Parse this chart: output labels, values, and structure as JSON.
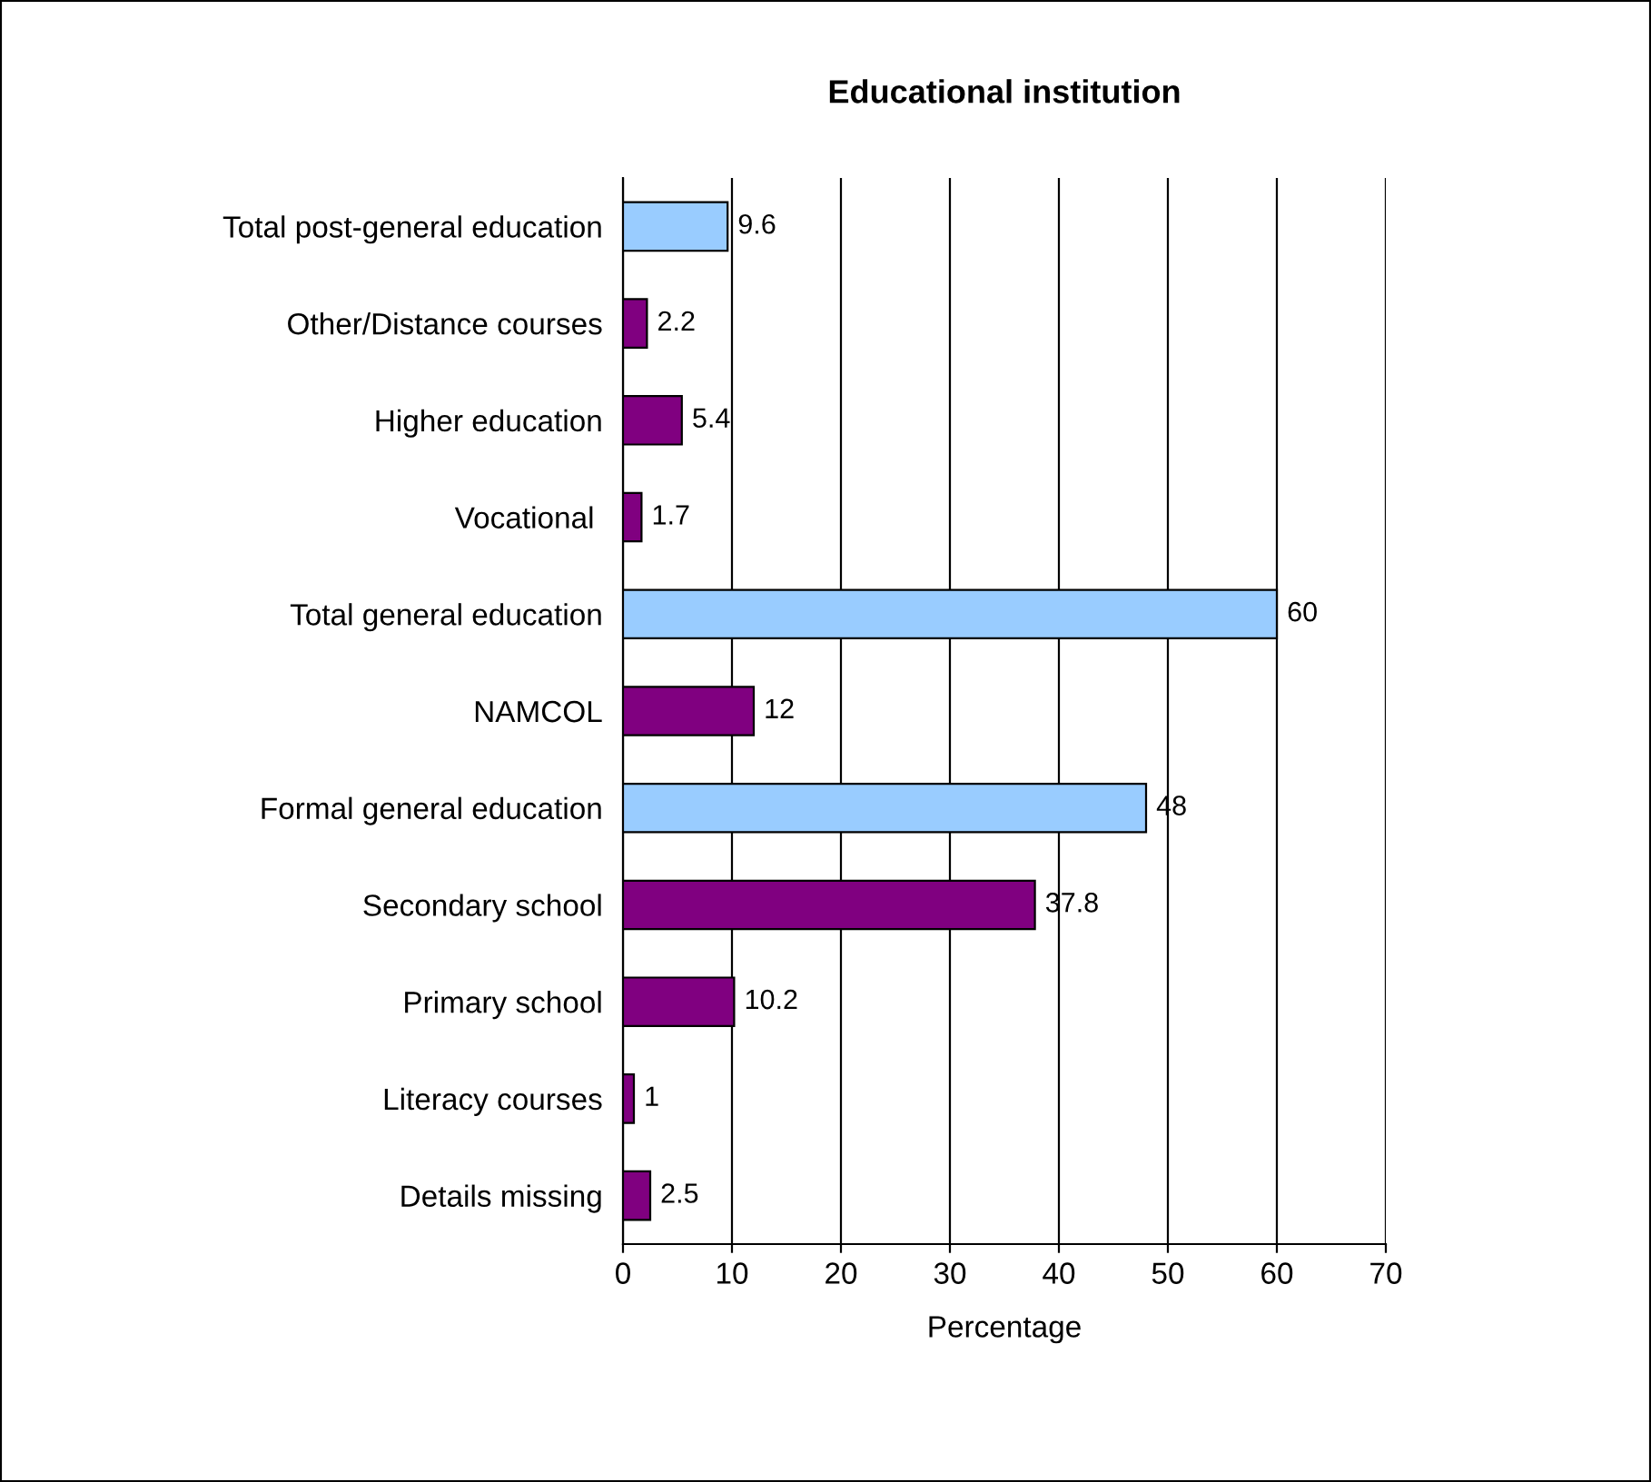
{
  "chart_data": {
    "type": "bar",
    "orientation": "horizontal",
    "title": "Educational institution",
    "xlabel": "Percentage",
    "categories": [
      "Total post-general education",
      "Other/Distance courses",
      "Higher education",
      "Vocational ",
      "Total general education",
      "NAMCOL",
      "Formal general education",
      "Secondary school",
      "Primary school",
      "Literacy courses",
      "Details missing"
    ],
    "values": [
      9.6,
      2.2,
      5.4,
      1.7,
      60,
      12,
      48,
      37.8,
      10.2,
      1,
      2.5
    ],
    "colors": [
      "#99ccff",
      "#800080",
      "#800080",
      "#800080",
      "#99ccff",
      "#800080",
      "#99ccff",
      "#800080",
      "#800080",
      "#800080",
      "#800080"
    ],
    "xlim": [
      0,
      70
    ],
    "xticks": [
      0,
      10,
      20,
      30,
      40,
      50,
      60,
      70
    ],
    "grid": "x",
    "data_labels": true
  }
}
